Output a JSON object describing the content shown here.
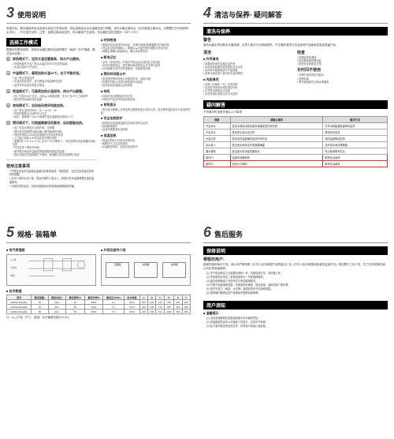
{
  "sections": {
    "s3": {
      "num": "3",
      "title": "使用说明"
    },
    "s4": {
      "num": "4",
      "title": "清洁与保养",
      "subtitle": "疑问解答"
    },
    "s5": {
      "num": "5",
      "title": "规格",
      "subtitle": "装箱单"
    },
    "s6": {
      "num": "6",
      "title": "售后服务"
    }
  },
  "s3": {
    "intro": "安装好后，数字面板有自由选择水封后打开进水阀，然后选择适当出水温度关进行调整，将热水器注满水后（初次使用注满水后，无需要打开水阀即有水流出），方可进行加热。注意：如果注满水前加热，热水器将产生危险。热水器的加热范围为（35℃-75℃）",
    "mode_select": "选择工作模式",
    "mode_select_desc": "根据实际需求选择，将电热水器切换到合适的模式（每按一次JP按键，模式自动切换）。",
    "modes": [
      {
        "icon": "即",
        "title": "即热模式下，设定水温设置最高，热水产出最快。",
        "desc": "• 在即热模式下出厂默认水温达到75℃时加热结束。\n• 水温达到40℃时出水。"
      },
      {
        "icon": "中",
        "title": "中温模式下，最高加热水温45℃，处于节能状态。",
        "desc": "• 出厂默认恒温加热\n• 中温加热状态时，显示屏显示恒温即时加热\n• 加热完毕后显示屏显示保温"
      },
      {
        "icon": "恒",
        "title": "恒温模式下，可最高加热水温保持，热水产出最慢。",
        "desc": "• 出厂时显示45℃左右，可用▲▼按键调整，在35℃至75℃之间调节\n• 加热完毕后保持设定温度"
      },
      {
        "icon": "夜",
        "title": "夜电模式下，自动启动夜间电能加热。",
        "desc": "• 出厂默认加热时间为：00：00-06：00\n• 时间内能耗为日间的50%左右\n• 设定：每间隔一次▲▼按键可设定温度增加或减少1℃"
      },
      {
        "icon": "预",
        "title": "预约模式下，可根据需要设定要求，自动智能加热。",
        "desc": "• 出厂时显示屏显示当前时间，可调整\n• 预约设定需按预约键后输入要求使用时间段\n• 预约时间到23:30会自动跳转为关闭加热状态\n• 上下键之间按▲▼可设定多次预约加热\n• 如果同4. 6:A. 8:V. 12:A. 18:20. 20:24等多个，请先将预约设定电器时间段加热\n• 可设定多个预约时间段\n• 调节模式间加热温度需按键调整设置加热温度\n• 预约功能仅在智能模式下使用，其他模式自动清除预约设定"
      }
    ],
    "notice_title": "使用注意事项",
    "notice_items": [
      "严禁在洗浴中过度增高温度加热身体皮肤，导致烫伤，如正在加热建议暂停时刻调整。",
      "当长少量热水注少量，混合水管的少量注入，将进口热水温度调整至适宜温度即可。",
      "为保护您的安全，请及时更换老旧的电源线和漏电保护器。"
    ],
    "right_col": {
      "clock": {
        "title": "时钟校准",
        "desc": "• 使用前请先校准时间设定，长按时钟键3秒屏幕数字开始闪烁\n• 然后将当前时间输入，按确认▲▼键分别可调整小时及分钟\n• 调整后按确认钟键退出，确认设定即完成"
      },
      "memory": {
        "title": "断电记忆",
        "desc": "• 意外（停电关机）时再次开机后会自动恢复之前设定\n• 意外停电恢复后，需先等待系统重启后方可进行加热\n• 请勿频繁手动开关机或断电，可能影响存储"
      },
      "appoint_standby": {
        "title": "预约时间段以外",
        "desc": "• 如您需在预约时段以外使用热水，请按JP键\n• 在预约时段以外的时间段需手动加热\n• 加热到设定温度后自动待机"
      },
      "standby": {
        "title": "待机",
        "desc": "• 待机时显示屏按键背光灯亮\n• 待机时只显示时间及状态信息"
      },
      "normal_display": {
        "title": "常亮显示",
        "desc": "• 常亮显示屏幕上日常加热过程检查显示状态为关，显示屏保温状态灯为无闪烁亮起"
      },
      "safe_heat": {
        "title": "安全加热防护",
        "desc": "• 如检测出加热棒温度过高则自动停止加热\n• 自动断电保护\n• 请及时更换老化加热棒"
      },
      "keep_warm": {
        "title": "保温加热",
        "desc": "• 保温加热时LED呈无闪烁状态\n• 每隔10℃左右启动加热\n• 水温数值闪烁，由安全加热防护"
      }
    }
  },
  "s4": {
    "clean_title": "清洗与保养",
    "warning_title": "警告",
    "warning_text": "清洗水器必须切断本水器电源，必须人离开方可继续清洗。不正确的清洗方法会影响产品使用性能及损害产品。",
    "clean_sub": "清洗",
    "outer": {
      "title": "外壳清洗",
      "desc": "• 用柔软的抹布定期清洁外壳\n• 请勿用含研磨剂或腐蚀性清洁水洗\n• 请勿将水直接喷洒于产品表面\n• 若有污垢请用少量中性清洁剂擦拭"
    },
    "inner": {
      "title": "内胆清洗",
      "desc": "• 定期（约每年一次）清洗内胆\n• 清洗前关闭进水阀并排空热水\n• 打开排污阀排出沉淀物\n• 清洗完成后重新注水方可加热"
    },
    "check": {
      "title": "检查",
      "desc": "• 定期检查电源线\n• 检查漏电保护器功能\n• 检查安全阀是否正常"
    },
    "longtime": {
      "title": "长时间不使用",
      "desc": "• 长期不用请排空内胆水\n• 切断电源\n• 再次使用前先注满水再通电"
    },
    "faq_title": "疑问解答",
    "faq_intro": "下列情况时请首先确认以下事项",
    "table": {
      "headers": [
        "现象",
        "请确认事项",
        "解决方法"
      ],
      "rows": [
        {
          "symptom": "不出热水",
          "check": "是否水阀关闭或电源未接通或加热未完成",
          "fix": "打开水阀接通电源等待加热"
        },
        {
          "symptom": "不出热水",
          "check": "是否停水或水压过低",
          "fix": "等待供水恢复"
        },
        {
          "symptom": "水温过低",
          "check": "是否设定温度偏低加热时间不足",
          "fix": "调高温度等待加热"
        },
        {
          "symptom": "出水量少",
          "check": "是否进水阀未全开或管路堵塞",
          "fix": "全开进水阀清理管路"
        },
        {
          "symptom": "漏水漏电",
          "check": "是否接头松动密封圈老化",
          "fix": "停止使用联系售后"
        },
        {
          "symptom": "操作F1",
          "check": "温度传感器故障",
          "fix": "联系售后维修",
          "highlight": true
        },
        {
          "symptom": "操作F2",
          "check": "加热元件故障",
          "fix": "联系售后维修",
          "highlight": true
        }
      ]
    }
  },
  "s5": {
    "diagram_title": "电气原理图",
    "parts_title": "外观及部件介绍",
    "parts": [
      "正面图",
      "左侧面",
      "右侧面"
    ],
    "spec_title": "技术数据",
    "spec_headers": [
      "型号",
      "额定容量L",
      "额定电压V",
      "额定频率Hz",
      "额定功率W",
      "额定压力MPa",
      "防水等级",
      "A",
      "B",
      "C",
      "D",
      "E",
      "F"
    ],
    "spec_note": "注：以上产品（尺寸、重量）允许偏差范围为±10%。",
    "spec_rows": [
      {
        "model": "ES50H-MG(ZE)",
        "cap": "50",
        "v": "220~",
        "hz": "50",
        "w": "2000",
        "mpa": "0.7",
        "ip": "IPX4",
        "a": "235",
        "b": "235",
        "c": "616",
        "d": "735",
        "e": "350",
        "f": "365"
      },
      {
        "model": "ES60H-MG(ZE)",
        "cap": "60",
        "v": "220~",
        "hz": "50",
        "w": "2000",
        "mpa": "0.7",
        "ip": "IPX4",
        "a": "235",
        "b": "235",
        "c": "716",
        "d": "835",
        "e": "350",
        "f": "365"
      },
      {
        "model": "ES80H-MG(ZE)",
        "cap": "80",
        "v": "220~",
        "hz": "50",
        "w": "2000",
        "mpa": "0.7",
        "ip": "IPX4",
        "a": "235",
        "b": "235",
        "c": "916",
        "d": "1035",
        "e": "350",
        "f": "365"
      }
    ]
  },
  "s6": {
    "warranty_title": "保修说明",
    "dear_user": "尊敬的用户:",
    "warranty_intro": "感谢您使用海尔产品。我公司严格按照《中华人民共和国产品质量法》及《中华人民共和国消费者权益保护法》规定履行三包义务，在三包有效期内我公司负责免费维修。",
    "warranty_items": [
      "(1) 本产品自购买之日起整机保修一年，内胆保修五年，加热管三年。",
      "(2) 凭有效购买凭证（发票或保修卡）享受保修服务。",
      "(3) 超出保修期或人为损坏实行有偿维修服务。",
      "(4) 不属于免费保修范围：未按说明书使用、擅自拆装、使用非原厂配件等。",
      "(5) 因不可抗力（地震、水灾等）造成的损坏不在保修范围。",
      "(6) 保修期内维修后的产品继续享受剩余保修期。"
    ],
    "user_notice_title": "用户须知",
    "warm_tip": "温馨提示",
    "user_items": [
      "(1) 请妥善保管购机发票及保修卡作为保修凭证。",
      "(2) 安装维修须由本公司指定人员进行，否则不予保修。",
      "(3) 此产品内部含有加热元件，请勿自行拆装以免危险。"
    ]
  }
}
